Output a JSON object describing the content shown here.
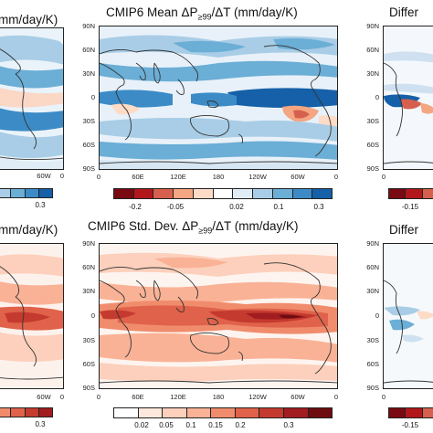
{
  "top_left": {
    "title": "mm/day/K)",
    "cbar_labels": [
      "0.3"
    ]
  },
  "top_center": {
    "title_a": "CMIP6 Mean ΔP",
    "title_sub": "≥99",
    "title_b": "/ΔT (mm/day/K)",
    "lat_labels": [
      "90N",
      "60N",
      "30N",
      "0",
      "30S",
      "60S",
      "90S"
    ],
    "lon_labels": [
      "0",
      "60E",
      "120E",
      "180",
      "120W",
      "60W",
      "0"
    ],
    "cbar_labels": [
      "-0.2",
      "-0.05",
      "0.02",
      "0.1",
      "0.3"
    ],
    "cbar_colors": [
      "#7a0a12",
      "#b2181b",
      "#d6604d",
      "#f4a582",
      "#fddbc7",
      "#ffffff",
      "#e0ecf6",
      "#a9cde6",
      "#6baed6",
      "#3c8bc6",
      "#1560a8"
    ]
  },
  "top_right": {
    "title": "Differ",
    "lat_labels": [
      "90N",
      "60N",
      "30N",
      "0",
      "30S",
      "60S",
      "90S"
    ],
    "lon_labels": [
      "0"
    ],
    "cbar_labels": [
      "-0.15"
    ]
  },
  "bottom_left": {
    "title": "mm/day/K)",
    "cbar_labels": [
      "0.3"
    ]
  },
  "bottom_center": {
    "title_a": "CMIP6 Std. Dev. ΔP",
    "title_sub": "≥99",
    "title_b": "/ΔT (mm/day/K)",
    "lat_labels": [
      "90N",
      "60N",
      "30N",
      "0",
      "30S",
      "60S",
      "90S"
    ],
    "lon_labels": [
      "0",
      "60E",
      "120E",
      "180",
      "120W",
      "60W",
      "0"
    ],
    "cbar_labels": [
      "0.02",
      "0.05",
      "0.1",
      "0.15",
      "0.2",
      "0.3"
    ],
    "cbar_colors": [
      "#ffffff",
      "#fee8dd",
      "#fcd0bc",
      "#f9b296",
      "#f08c6c",
      "#e0624a",
      "#c53a2e",
      "#a11d20",
      "#6e0d10"
    ]
  },
  "bottom_right": {
    "title": "Differ",
    "lat_labels": [
      "90N",
      "60N",
      "30N",
      "0",
      "30S",
      "60S",
      "90S"
    ],
    "lon_labels": [
      "0"
    ],
    "cbar_labels": [
      "-0.15"
    ]
  }
}
